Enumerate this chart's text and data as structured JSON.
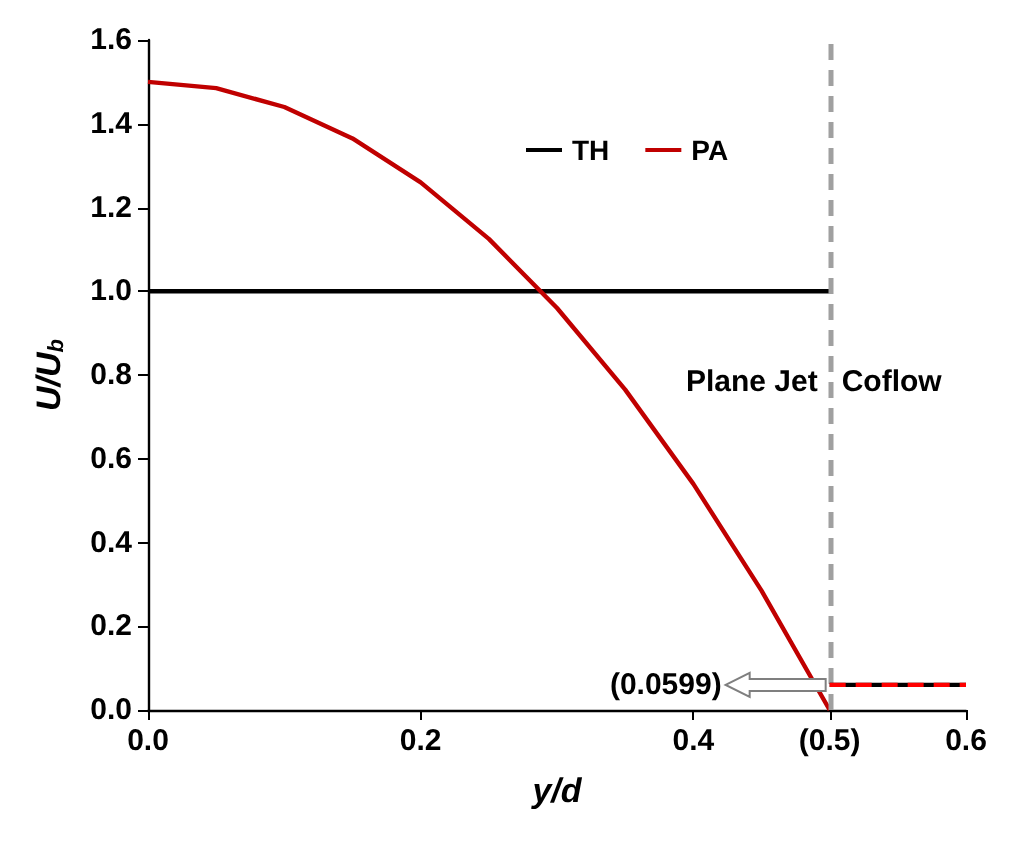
{
  "chart_data": {
    "type": "line",
    "xlabel": "y/d",
    "ylabel": "U/U$_{b}$",
    "xlim": [
      0,
      0.6
    ],
    "xticks": [
      {
        "value": 0,
        "label": "0.0"
      },
      {
        "value": 0.2,
        "label": "0.2"
      },
      {
        "value": 0.4,
        "label": "0.4"
      },
      {
        "value": 0.5,
        "label": "(0.5)"
      },
      {
        "value": 0.6,
        "label": "0.6"
      }
    ],
    "ylim": [
      0,
      1.6
    ],
    "yticks": [
      {
        "value": 0,
        "label": "0.0"
      },
      {
        "value": 0.2,
        "label": "0.2"
      },
      {
        "value": 0.4,
        "label": "0.4"
      },
      {
        "value": 0.6,
        "label": "0.6"
      },
      {
        "value": 0.8,
        "label": "0.8"
      },
      {
        "value": 1.0,
        "label": "1.0"
      },
      {
        "value": 1.2,
        "label": "1.2"
      },
      {
        "value": 1.4,
        "label": "1.4"
      },
      {
        "value": 1.6,
        "label": "1.6"
      }
    ],
    "series": [
      {
        "name": "TH",
        "color": "#000000",
        "x": [
          0,
          0.5
        ],
        "values": [
          1,
          1
        ]
      },
      {
        "name": "PA",
        "color": "#c00000",
        "x": [
          0,
          0.05,
          0.1,
          0.15,
          0.2,
          0.25,
          0.3,
          0.35,
          0.4,
          0.45,
          0.5
        ],
        "values": [
          1.5,
          1.485,
          1.44,
          1.365,
          1.26,
          1.125,
          0.96,
          0.765,
          0.54,
          0.285,
          0
        ]
      },
      {
        "color": "#000000",
        "x": [
          0.5,
          0.6
        ],
        "values": [
          0.0599,
          0.0599
        ]
      },
      {
        "color": "#ff0000",
        "line_style": "dashed",
        "x": [
          0.5,
          0.6
        ],
        "values": [
          0.0599,
          0.0599
        ]
      }
    ],
    "ref_lines": [
      {
        "axis": "x",
        "value": 0.5,
        "color": "#a0a0a0",
        "line_style": "dashed"
      }
    ],
    "annotations": [
      "Plane Jet",
      "Coflow",
      "(0.0599)"
    ],
    "legend": "top",
    "grid": false,
    "line_style": "solid",
    "marker": "none"
  }
}
